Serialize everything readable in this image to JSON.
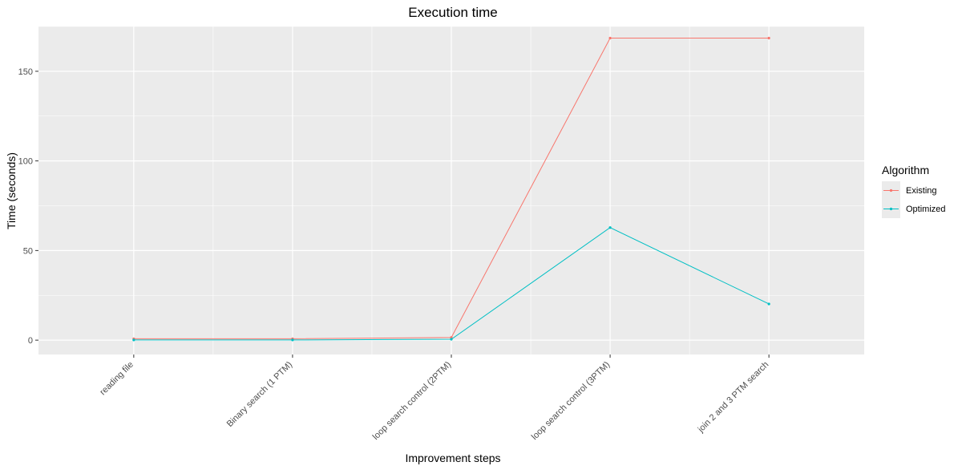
{
  "chart_data": {
    "type": "line",
    "title": "Execution time",
    "xlabel": "Improvement steps",
    "ylabel": "Time (seconds)",
    "categories": [
      "reading file",
      "Binary search (1 PTM)",
      "loop search control (2PTM)",
      "loop search control (3PTM)",
      "join 2 and 3 PTM search"
    ],
    "yticks": [
      "0",
      "50",
      "100",
      "150"
    ],
    "ylim": [
      -8,
      175
    ],
    "grid": true,
    "legend": {
      "title": "Algorithm",
      "placement": "right"
    },
    "series": [
      {
        "name": "Existing",
        "color": "#F8766D",
        "values": [
          0.8,
          0.8,
          1.5,
          168.5,
          168.5
        ]
      },
      {
        "name": "Optimized",
        "color": "#00BFC4",
        "values": [
          0.1,
          0.1,
          0.5,
          62.8,
          20.2
        ]
      }
    ]
  }
}
